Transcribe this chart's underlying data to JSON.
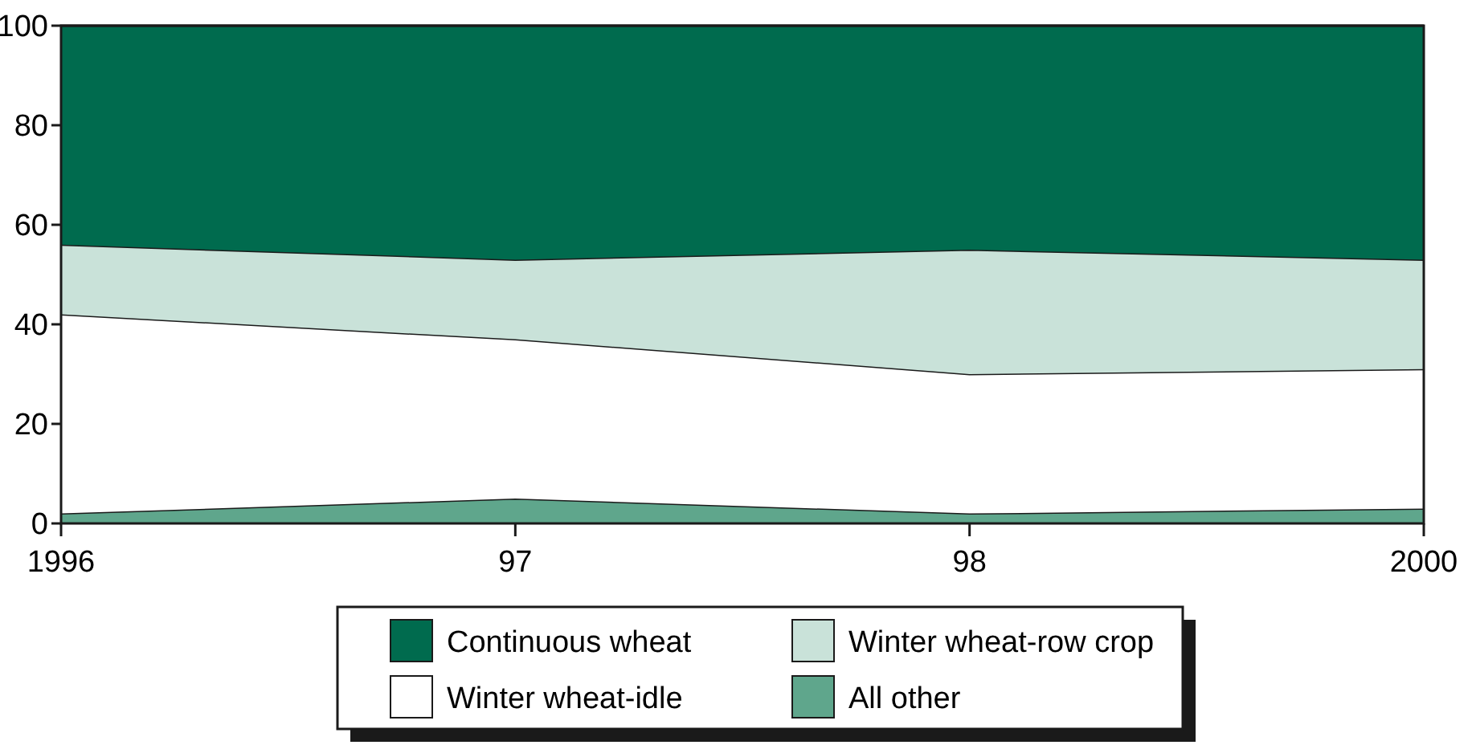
{
  "chart_data": {
    "type": "area",
    "stacked": true,
    "categories": [
      "1996",
      "97",
      "98",
      "2000"
    ],
    "series": [
      {
        "name": "All other",
        "color": "#5fa68c",
        "values": [
          2,
          5,
          2,
          3
        ]
      },
      {
        "name": "Winter wheat-idle",
        "color": "#ffffff",
        "values": [
          40,
          32,
          28,
          28
        ]
      },
      {
        "name": "Winter wheat-row crop",
        "color": "#c9e2d9",
        "values": [
          14,
          16,
          25,
          22
        ]
      },
      {
        "name": "Continuous wheat",
        "color": "#006b4e",
        "values": [
          44,
          47,
          45,
          47
        ]
      }
    ],
    "ylim": [
      0,
      100
    ],
    "yticks": [
      0,
      20,
      40,
      60,
      80,
      100
    ],
    "grid": false,
    "legend": "bottom"
  }
}
